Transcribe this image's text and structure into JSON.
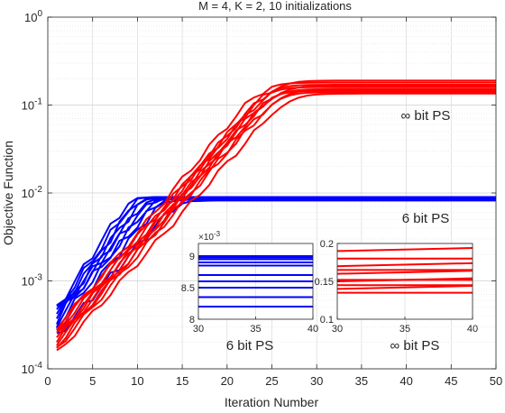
{
  "chart_data": {
    "type": "line",
    "title": "M = 4, K = 2, 10 initializations",
    "xlabel": "Iteration Number",
    "ylabel": "Objective Function",
    "xlim": [
      0,
      50
    ],
    "ylim": [
      0.0001,
      1
    ],
    "yscale": "log",
    "grid": true,
    "xticks": [
      "0",
      "5",
      "10",
      "15",
      "20",
      "25",
      "30",
      "35",
      "40",
      "45",
      "50"
    ],
    "ytick_exponents": [
      "-4",
      "-3",
      "-2",
      "-1",
      "0"
    ],
    "ytick_base": "10",
    "annotations": {
      "inf_label": "∞ bit PS",
      "six_label": "6 bit PS"
    },
    "colors": {
      "inf": "#ff0000",
      "six": "#0000ff"
    },
    "series_inf": {
      "start": [
        0.00015,
        0.00017,
        0.00018,
        0.0002,
        0.00021,
        0.00022,
        0.00024,
        0.00026,
        0.00028,
        0.0003
      ],
      "final": [
        0.135,
        0.14,
        0.145,
        0.15,
        0.152,
        0.16,
        0.165,
        0.17,
        0.18,
        0.19
      ]
    },
    "series_six": {
      "start": [
        0.00023,
        0.00028,
        0.0003,
        0.00033,
        0.00036,
        0.0004,
        0.00042,
        0.00044,
        0.00046,
        0.00048
      ],
      "final": [
        0.0082,
        0.00835,
        0.0085,
        0.0086,
        0.0087,
        0.00885,
        0.0089,
        0.00895,
        0.00898,
        0.009
      ]
    },
    "inset_six": {
      "label": "6 bit PS",
      "exponent_label": "×10",
      "exponent": "-3",
      "xlim": [
        30,
        40
      ],
      "ylim": [
        0.008,
        0.0092
      ],
      "xticks": [
        "30",
        "35",
        "40"
      ],
      "yticks": [
        "8",
        "8.5",
        "9"
      ]
    },
    "inset_inf": {
      "label": "∞ bit PS",
      "xlim": [
        30,
        40
      ],
      "ylim": [
        0.1,
        0.2
      ],
      "xticks": [
        "30",
        "35",
        "40"
      ],
      "yticks": [
        "0.1",
        "0.15",
        "0.2"
      ]
    }
  }
}
